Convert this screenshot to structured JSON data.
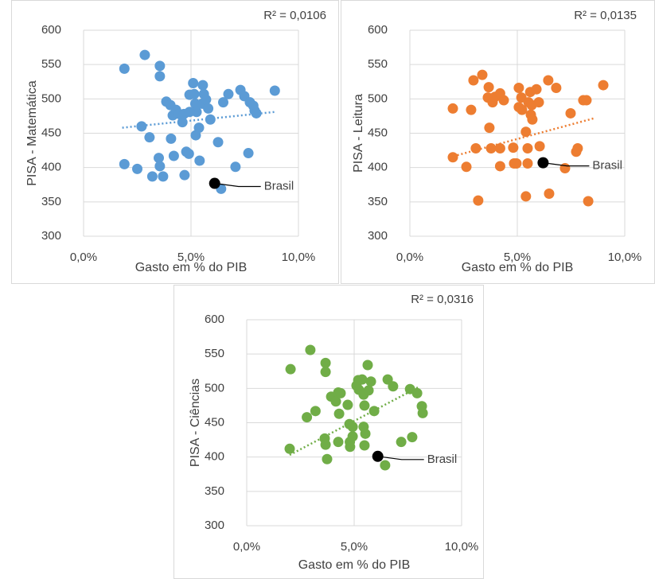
{
  "chart_data": [
    {
      "type": "scatter",
      "y_label": "PISA - Matemática",
      "x_label": "Gasto em % do PIB",
      "color": "#5b9bd5",
      "grid": true,
      "xlim": [
        0,
        10
      ],
      "xticks": [
        {
          "value": 0,
          "label": "0,0%"
        },
        {
          "value": 5,
          "label": "5,0%"
        },
        {
          "value": 10,
          "label": "10,0%"
        }
      ],
      "ylim": [
        300,
        600
      ],
      "yticks": [
        300,
        350,
        400,
        450,
        500,
        550,
        600
      ],
      "x": [
        1.9,
        2.85,
        3.55,
        3.55,
        1.9,
        2.5,
        2.7,
        3.07,
        3.2,
        3.5,
        3.55,
        3.7,
        3.85,
        4.04,
        4.15,
        4.07,
        4.2,
        4.3,
        4.45,
        4.6,
        4.67,
        4.7,
        4.78,
        4.9,
        4.93,
        5.1,
        5.15,
        5.2,
        5.22,
        5.37,
        5.4,
        5.55,
        5.52,
        5.6,
        5.7,
        5.8,
        5.9,
        5.26,
        4.93,
        6.26,
        6.4,
        6.5,
        6.74,
        7.07,
        7.3,
        7.48,
        7.67,
        7.74,
        7.9,
        7.96,
        8.04,
        8.9
      ],
      "values": [
        544,
        564,
        548,
        533,
        405,
        398,
        460,
        444,
        387,
        414,
        402,
        387,
        496,
        491,
        476,
        442,
        417,
        484,
        478,
        466,
        478,
        389,
        423,
        420,
        506,
        523,
        507,
        493,
        447,
        458,
        410,
        520,
        493,
        507,
        499,
        486,
        470,
        481,
        481,
        437,
        369,
        495,
        507,
        401,
        513,
        504,
        421,
        495,
        490,
        483,
        479,
        512
      ],
      "trendline": {
        "x": [
          1.8,
          8.9
        ],
        "values": [
          458,
          481
        ]
      },
      "r_squared": "R² = 0,0106",
      "highlight": {
        "label": "Brasil",
        "x": 6.1,
        "y": 377
      }
    },
    {
      "type": "scatter",
      "y_label": "PISA - Leitura",
      "x_label": "Gasto em % do PIB",
      "color": "#ed7d31",
      "grid": true,
      "xlim": [
        0,
        10
      ],
      "xticks": [
        {
          "value": 0,
          "label": "0,0%"
        },
        {
          "value": 5,
          "label": "5,0%"
        },
        {
          "value": 10,
          "label": "10,0%"
        }
      ],
      "ylim": [
        300,
        600
      ],
      "yticks": [
        300,
        350,
        400,
        450,
        500,
        550,
        600
      ],
      "x": [
        2.0,
        2.0,
        2.63,
        2.85,
        2.96,
        3.07,
        3.18,
        3.37,
        3.67,
        3.63,
        3.7,
        3.78,
        3.85,
        3.96,
        4.2,
        4.2,
        4.2,
        4.37,
        4.81,
        4.85,
        4.96,
        5.07,
        5.07,
        5.19,
        5.22,
        5.4,
        5.4,
        5.48,
        5.48,
        5.52,
        5.6,
        5.63,
        5.67,
        5.7,
        5.89,
        6.0,
        6.04,
        6.44,
        6.48,
        6.81,
        7.22,
        7.48,
        7.74,
        7.81,
        8.07,
        8.22,
        8.3,
        9.0
      ],
      "values": [
        486,
        415,
        401,
        484,
        527,
        428,
        352,
        535,
        517,
        502,
        458,
        428,
        495,
        503,
        508,
        428,
        402,
        498,
        429,
        406,
        406,
        516,
        488,
        502,
        484,
        358,
        452,
        406,
        428,
        495,
        510,
        477,
        491,
        470,
        514,
        495,
        431,
        527,
        362,
        516,
        399,
        479,
        423,
        428,
        498,
        498,
        351,
        520
      ],
      "trendline": {
        "x": [
          1.85,
          8.6
        ],
        "values": [
          415,
          472
        ]
      },
      "r_squared": "R² = 0,0135",
      "highlight": {
        "label": "Brasil",
        "x": 6.2,
        "y": 407
      }
    },
    {
      "type": "scatter",
      "y_label": "PISA - Ciências",
      "x_label": "Gasto em % do PIB",
      "color": "#70ad47",
      "grid": true,
      "xlim": [
        0,
        10
      ],
      "xticks": [
        {
          "value": 0,
          "label": "0,0%"
        },
        {
          "value": 5,
          "label": "5,0%"
        },
        {
          "value": 10,
          "label": "10,0%"
        }
      ],
      "ylim": [
        300,
        600
      ],
      "yticks": [
        300,
        350,
        400,
        450,
        500,
        550,
        600
      ],
      "x": [
        2.04,
        2.0,
        2.8,
        2.96,
        3.2,
        3.67,
        3.67,
        3.63,
        3.67,
        3.74,
        3.93,
        4.15,
        4.26,
        4.3,
        4.26,
        4.37,
        4.7,
        4.8,
        4.93,
        4.93,
        5.11,
        5.19,
        5.22,
        5.37,
        5.44,
        5.44,
        5.48,
        5.52,
        5.48,
        5.63,
        5.67,
        5.78,
        5.93,
        4.78,
        6.44,
        6.56,
        6.81,
        7.19,
        7.6,
        7.7,
        7.93,
        8.15,
        8.19,
        4.81
      ],
      "values": [
        528,
        412,
        458,
        556,
        467,
        537,
        524,
        427,
        418,
        397,
        488,
        481,
        494,
        463,
        422,
        493,
        476,
        422,
        430,
        444,
        504,
        512,
        498,
        513,
        491,
        444,
        475,
        434,
        417,
        534,
        497,
        510,
        467,
        448,
        388,
        513,
        503,
        422,
        499,
        429,
        493,
        474,
        464,
        415
      ],
      "trendline": {
        "x": [
          2.0,
          8.0
        ],
        "values": [
          403,
          502
        ]
      },
      "r_squared": "R² = 0,0316",
      "highlight": {
        "label": "Brasil",
        "x": 6.1,
        "y": 401
      }
    }
  ]
}
